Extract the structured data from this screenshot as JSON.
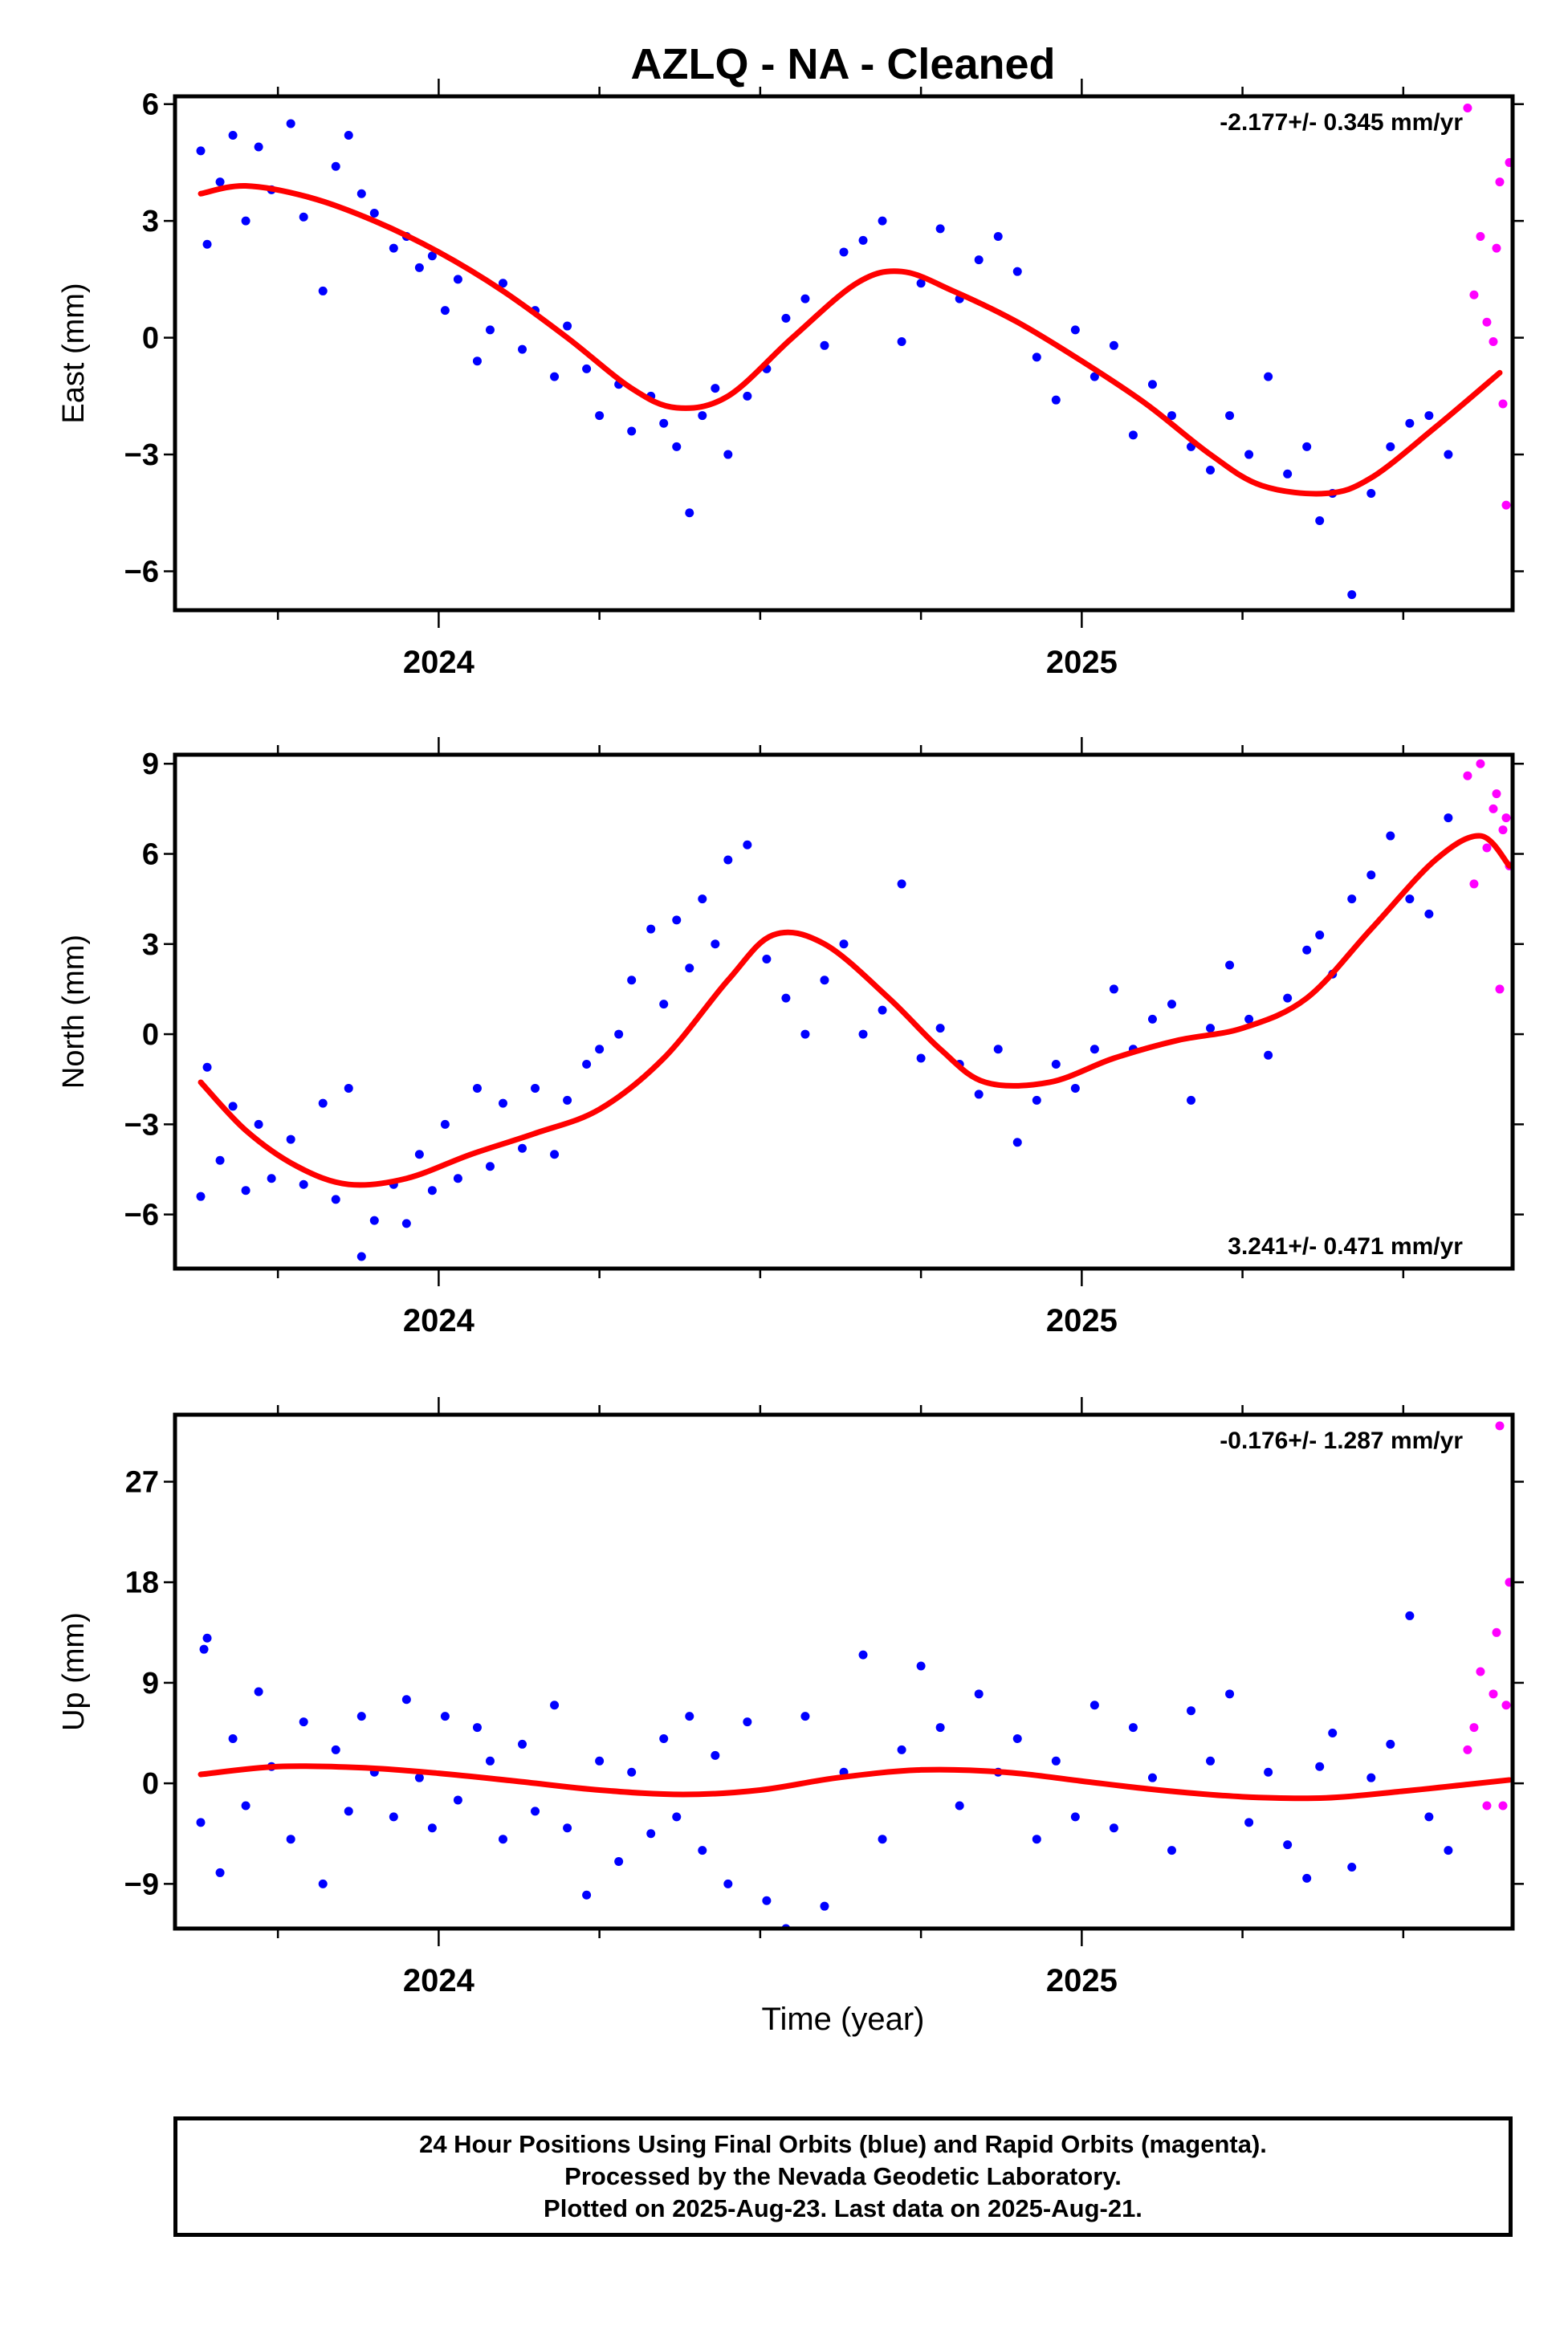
{
  "title": "AZLQ  - NA - Cleaned",
  "xlabel": "Time (year)",
  "colors": {
    "final": "#0000ff",
    "rapid": "#ff00ff",
    "fit": "#ff0000",
    "frame": "#000000"
  },
  "caption": {
    "line1": "24 Hour Positions Using Final Orbits (blue) and Rapid Orbits (magenta).",
    "line2": "Processed by the Nevada Geodetic Laboratory.",
    "line3": "Plotted on 2025-Aug-23. Last data on 2025-Aug-21."
  },
  "chart_data": [
    {
      "type": "scatter",
      "ylabel": "East (mm)",
      "rate_label": "-2.177+/- 0.345 mm/yr",
      "rate_position": "top-right",
      "xlim": [
        2023.59,
        2025.67
      ],
      "ylim": [
        -7,
        6.2
      ],
      "xticks": [
        2024,
        2025
      ],
      "yticks": [
        -6,
        -3,
        0,
        3,
        6
      ],
      "grid": false,
      "trend_mm_per_yr": -2.177,
      "fit_curve": {
        "x": [
          2023.63,
          2023.7,
          2023.8,
          2023.9,
          2024.0,
          2024.1,
          2024.2,
          2024.3,
          2024.37,
          2024.45,
          2024.55,
          2024.65,
          2024.72,
          2024.8,
          2024.9,
          2025.0,
          2025.1,
          2025.2,
          2025.28,
          2025.38,
          2025.45,
          2025.55,
          2025.65
        ],
        "y": [
          3.7,
          3.9,
          3.6,
          3.0,
          2.2,
          1.2,
          0.0,
          -1.3,
          -1.8,
          -1.5,
          0.0,
          1.4,
          1.7,
          1.2,
          0.4,
          -0.6,
          -1.7,
          -3.0,
          -3.8,
          -4.0,
          -3.6,
          -2.3,
          -0.9
        ]
      },
      "final_orbits": {
        "x": [
          2023.63,
          2023.64,
          2023.66,
          2023.68,
          2023.7,
          2023.72,
          2023.74,
          2023.77,
          2023.79,
          2023.82,
          2023.84,
          2023.86,
          2023.88,
          2023.9,
          2023.93,
          2023.95,
          2023.97,
          2023.99,
          2024.01,
          2024.03,
          2024.06,
          2024.08,
          2024.1,
          2024.13,
          2024.15,
          2024.18,
          2024.2,
          2024.23,
          2024.25,
          2024.28,
          2024.3,
          2024.33,
          2024.35,
          2024.37,
          2024.39,
          2024.41,
          2024.43,
          2024.45,
          2024.48,
          2024.51,
          2024.54,
          2024.57,
          2024.6,
          2024.63,
          2024.66,
          2024.69,
          2024.72,
          2024.75,
          2024.78,
          2024.81,
          2024.84,
          2024.87,
          2024.9,
          2024.93,
          2024.96,
          2024.99,
          2025.02,
          2025.05,
          2025.08,
          2025.11,
          2025.14,
          2025.17,
          2025.2,
          2025.23,
          2025.26,
          2025.29,
          2025.32,
          2025.35,
          2025.37,
          2025.39,
          2025.42,
          2025.45,
          2025.48,
          2025.51,
          2025.54,
          2025.57
        ],
        "y": [
          4.8,
          2.4,
          4.0,
          5.2,
          3.0,
          4.9,
          3.8,
          5.5,
          3.1,
          1.2,
          4.4,
          5.2,
          3.7,
          3.2,
          2.3,
          2.6,
          1.8,
          2.1,
          0.7,
          1.5,
          -0.6,
          0.2,
          1.4,
          -0.3,
          0.7,
          -1.0,
          0.3,
          -0.8,
          -2.0,
          -1.2,
          -2.4,
          -1.5,
          -2.2,
          -2.8,
          -4.5,
          -2.0,
          -1.3,
          -3.0,
          -1.5,
          -0.8,
          0.5,
          1.0,
          -0.2,
          2.2,
          2.5,
          3.0,
          -0.1,
          1.4,
          2.8,
          1.0,
          2.0,
          2.6,
          1.7,
          -0.5,
          -1.6,
          0.2,
          -1.0,
          -0.2,
          -2.5,
          -1.2,
          -2.0,
          -2.8,
          -3.4,
          -2.0,
          -3.0,
          -1.0,
          -3.5,
          -2.8,
          -4.7,
          -4.0,
          -6.6,
          -4.0,
          -2.8,
          -2.2,
          -2.0,
          -3.0
        ]
      },
      "rapid_orbits": {
        "x": [
          2025.6,
          2025.61,
          2025.62,
          2025.63,
          2025.64,
          2025.645,
          2025.65,
          2025.655,
          2025.66,
          2025.665
        ],
        "y": [
          5.9,
          1.1,
          2.6,
          0.4,
          -0.1,
          2.3,
          4.0,
          -1.7,
          -4.3,
          4.5
        ]
      }
    },
    {
      "type": "scatter",
      "ylabel": "North (mm)",
      "rate_label": "3.241+/- 0.471 mm/yr",
      "rate_position": "bottom-right",
      "xlim": [
        2023.59,
        2025.67
      ],
      "ylim": [
        -7.8,
        9.3
      ],
      "xticks": [
        2024,
        2025
      ],
      "yticks": [
        -6,
        -3,
        0,
        3,
        6,
        9
      ],
      "grid": false,
      "trend_mm_per_yr": 3.241,
      "fit_curve": {
        "x": [
          2023.63,
          2023.7,
          2023.78,
          2023.86,
          2023.95,
          2024.05,
          2024.15,
          2024.25,
          2024.35,
          2024.45,
          2024.52,
          2024.6,
          2024.7,
          2024.78,
          2024.85,
          2024.95,
          2025.05,
          2025.15,
          2025.25,
          2025.35,
          2025.45,
          2025.55,
          2025.62,
          2025.665
        ],
        "y": [
          -1.6,
          -3.2,
          -4.4,
          -5.0,
          -4.8,
          -4.0,
          -3.3,
          -2.5,
          -0.8,
          1.8,
          3.3,
          3.0,
          1.2,
          -0.5,
          -1.6,
          -1.6,
          -0.8,
          -0.2,
          0.2,
          1.2,
          3.5,
          5.8,
          6.6,
          5.6
        ]
      },
      "final_orbits": {
        "x": [
          2023.63,
          2023.64,
          2023.66,
          2023.68,
          2023.7,
          2023.72,
          2023.74,
          2023.77,
          2023.79,
          2023.82,
          2023.84,
          2023.86,
          2023.88,
          2023.9,
          2023.93,
          2023.95,
          2023.97,
          2023.99,
          2024.01,
          2024.03,
          2024.06,
          2024.08,
          2024.1,
          2024.13,
          2024.15,
          2024.18,
          2024.2,
          2024.23,
          2024.25,
          2024.28,
          2024.3,
          2024.33,
          2024.35,
          2024.37,
          2024.39,
          2024.41,
          2024.43,
          2024.45,
          2024.48,
          2024.51,
          2024.54,
          2024.57,
          2024.6,
          2024.63,
          2024.66,
          2024.69,
          2024.72,
          2024.75,
          2024.78,
          2024.81,
          2024.84,
          2024.87,
          2024.9,
          2024.93,
          2024.96,
          2024.99,
          2025.02,
          2025.05,
          2025.08,
          2025.11,
          2025.14,
          2025.17,
          2025.2,
          2025.23,
          2025.26,
          2025.29,
          2025.32,
          2025.35,
          2025.37,
          2025.39,
          2025.42,
          2025.45,
          2025.48,
          2025.51,
          2025.54,
          2025.57
        ],
        "y": [
          -5.4,
          -1.1,
          -4.2,
          -2.4,
          -5.2,
          -3.0,
          -4.8,
          -3.5,
          -5.0,
          -2.3,
          -5.5,
          -1.8,
          -7.4,
          -6.2,
          -5.0,
          -6.3,
          -4.0,
          -5.2,
          -3.0,
          -4.8,
          -1.8,
          -4.4,
          -2.3,
          -3.8,
          -1.8,
          -4.0,
          -2.2,
          -1.0,
          -0.5,
          0.0,
          1.8,
          3.5,
          1.0,
          3.8,
          2.2,
          4.5,
          3.0,
          5.8,
          6.3,
          2.5,
          1.2,
          0.0,
          1.8,
          3.0,
          0.0,
          0.8,
          5.0,
          -0.8,
          0.2,
          -1.0,
          -2.0,
          -0.5,
          -3.6,
          -2.2,
          -1.0,
          -1.8,
          -0.5,
          1.5,
          -0.5,
          0.5,
          1.0,
          -2.2,
          0.2,
          2.3,
          0.5,
          -0.7,
          1.2,
          2.8,
          3.3,
          2.0,
          4.5,
          5.3,
          6.6,
          4.5,
          4.0,
          7.2
        ]
      },
      "rapid_orbits": {
        "x": [
          2025.6,
          2025.61,
          2025.62,
          2025.63,
          2025.64,
          2025.645,
          2025.65,
          2025.655,
          2025.66,
          2025.665
        ],
        "y": [
          8.6,
          5.0,
          9.0,
          6.2,
          7.5,
          8.0,
          1.5,
          6.8,
          7.2,
          5.6
        ]
      }
    },
    {
      "type": "scatter",
      "ylabel": "Up (mm)",
      "rate_label": "-0.176+/- 1.287 mm/yr",
      "rate_position": "top-right",
      "xlim": [
        2023.59,
        2025.67
      ],
      "ylim": [
        -13,
        33
      ],
      "xticks": [
        2024,
        2025
      ],
      "yticks": [
        -9,
        0,
        9,
        18,
        27
      ],
      "grid": false,
      "trend_mm_per_yr": -0.176,
      "fit_curve": {
        "x": [
          2023.63,
          2023.75,
          2023.88,
          2024.0,
          2024.12,
          2024.25,
          2024.38,
          2024.5,
          2024.62,
          2024.75,
          2024.88,
          2025.0,
          2025.12,
          2025.25,
          2025.38,
          2025.5,
          2025.6,
          2025.665
        ],
        "y": [
          0.8,
          1.5,
          1.4,
          0.9,
          0.2,
          -0.6,
          -1.0,
          -0.6,
          0.5,
          1.2,
          1.0,
          0.2,
          -0.6,
          -1.2,
          -1.3,
          -0.7,
          -0.1,
          0.3
        ]
      },
      "final_orbits": {
        "x": [
          2023.63,
          2023.635,
          2023.64,
          2023.66,
          2023.68,
          2023.7,
          2023.72,
          2023.74,
          2023.77,
          2023.79,
          2023.82,
          2023.84,
          2023.86,
          2023.88,
          2023.9,
          2023.93,
          2023.95,
          2023.97,
          2023.99,
          2024.01,
          2024.03,
          2024.06,
          2024.08,
          2024.1,
          2024.13,
          2024.15,
          2024.18,
          2024.2,
          2024.23,
          2024.25,
          2024.28,
          2024.3,
          2024.33,
          2024.35,
          2024.37,
          2024.39,
          2024.41,
          2024.43,
          2024.45,
          2024.48,
          2024.51,
          2024.54,
          2024.57,
          2024.6,
          2024.63,
          2024.66,
          2024.69,
          2024.72,
          2024.75,
          2024.78,
          2024.81,
          2024.84,
          2024.87,
          2024.9,
          2024.93,
          2024.96,
          2024.99,
          2025.02,
          2025.05,
          2025.08,
          2025.11,
          2025.14,
          2025.17,
          2025.2,
          2025.23,
          2025.26,
          2025.29,
          2025.32,
          2025.35,
          2025.37,
          2025.39,
          2025.42,
          2025.45,
          2025.48,
          2025.51,
          2025.54,
          2025.57
        ],
        "y": [
          -3.5,
          12.0,
          13.0,
          -8.0,
          4.0,
          -2.0,
          8.2,
          1.5,
          -5.0,
          5.5,
          -9.0,
          3.0,
          -2.5,
          6.0,
          1.0,
          -3.0,
          7.5,
          0.5,
          -4.0,
          6.0,
          -1.5,
          5.0,
          2.0,
          -5.0,
          3.5,
          -2.5,
          7.0,
          -4.0,
          -10.0,
          2.0,
          -7.0,
          1.0,
          -4.5,
          4.0,
          -3.0,
          6.0,
          -6.0,
          2.5,
          -9.0,
          5.5,
          -10.5,
          -13.0,
          6.0,
          -11.0,
          1.0,
          11.5,
          -5.0,
          3.0,
          10.5,
          5.0,
          -2.0,
          8.0,
          1.0,
          4.0,
          -5.0,
          2.0,
          -3.0,
          7.0,
          -4.0,
          5.0,
          0.5,
          -6.0,
          6.5,
          2.0,
          8.0,
          -3.5,
          1.0,
          -5.5,
          -8.5,
          1.5,
          4.5,
          -7.5,
          0.5,
          3.5,
          15.0,
          -3.0,
          -6.0
        ]
      },
      "rapid_orbits": {
        "x": [
          2025.6,
          2025.61,
          2025.62,
          2025.63,
          2025.64,
          2025.645,
          2025.65,
          2025.655,
          2025.66,
          2025.665
        ],
        "y": [
          3.0,
          5.0,
          10.0,
          -2.0,
          8.0,
          13.5,
          32.0,
          -2.0,
          7.0,
          18.0
        ]
      }
    }
  ]
}
